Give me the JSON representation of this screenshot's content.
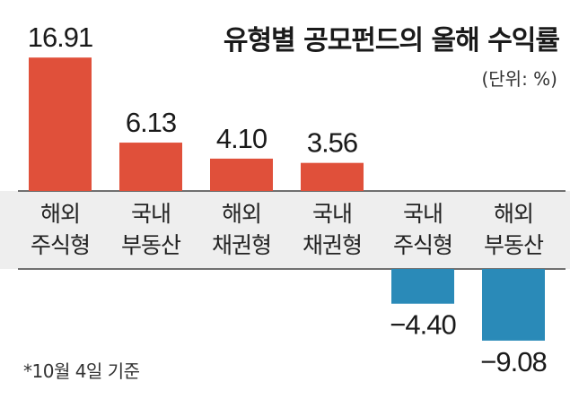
{
  "header": {
    "title": "유형별 공모펀드의 올해 수익률",
    "unit": "(단위: %)"
  },
  "footnote": "*10월 4일 기준",
  "colors": {
    "positive": "#e0503a",
    "negative": "#2a8ab8",
    "label_background": "#eeeeee",
    "axis": "#444444"
  },
  "chart_data": {
    "type": "bar",
    "title": "유형별 공모펀드의 올해 수익률",
    "xlabel": "",
    "ylabel": "",
    "grid": false,
    "categories": [
      [
        "해외",
        "주식형"
      ],
      [
        "국내",
        "부동산"
      ],
      [
        "해외",
        "채권형"
      ],
      [
        "국내",
        "채권형"
      ],
      [
        "국내",
        "주식형"
      ],
      [
        "해외",
        "부동산"
      ]
    ],
    "values": [
      16.91,
      6.13,
      4.1,
      3.56,
      -4.4,
      -9.08
    ],
    "value_labels": [
      "16.91",
      "6.13",
      "4.10",
      "3.56",
      "−4.40",
      "−9.08"
    ]
  }
}
